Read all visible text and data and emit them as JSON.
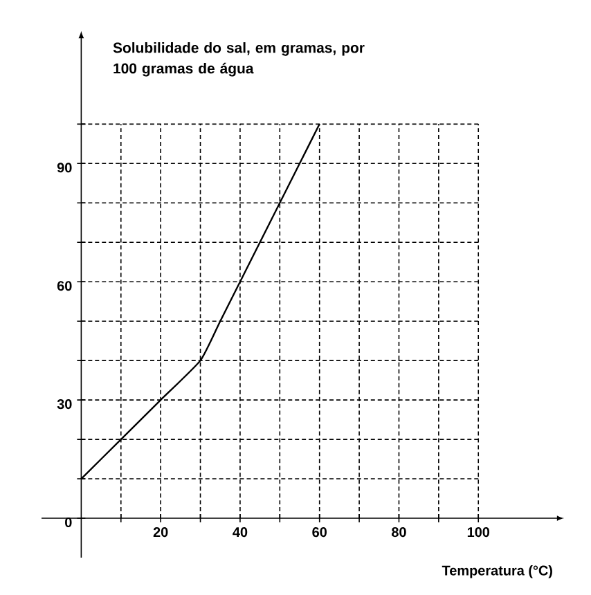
{
  "chart_data": {
    "type": "line",
    "ylabel": "Solubilidade do sal, em gramas, por 100 gramas de água",
    "xlabel": "Temperatura (°C)",
    "x": [
      0,
      10,
      20,
      30,
      35,
      40,
      45,
      50,
      55,
      60
    ],
    "series": [
      {
        "color": "#000000",
        "values": [
          10,
          20,
          30,
          40,
          50,
          60,
          70,
          80,
          90,
          100
        ]
      }
    ],
    "xlim": [
      -10,
      120
    ],
    "ylim": [
      -10,
      122
    ],
    "xticks": [
      {
        "value": 10,
        "label": null
      },
      20,
      {
        "value": 30,
        "label": null
      },
      40,
      {
        "value": 50,
        "label": null
      },
      60,
      {
        "value": 70,
        "label": null
      },
      80,
      {
        "value": 90,
        "label": null
      },
      100
    ],
    "yticks": [
      0,
      {
        "value": 10,
        "label": null
      },
      {
        "value": 20,
        "label": null
      },
      30,
      {
        "value": 40,
        "label": null
      },
      {
        "value": 50,
        "label": null
      },
      60,
      {
        "value": 70,
        "label": null
      },
      {
        "value": 80,
        "label": null
      },
      90,
      {
        "value": 100,
        "label": null
      }
    ],
    "grid": true,
    "line_style": "solid",
    "marker": "none"
  }
}
